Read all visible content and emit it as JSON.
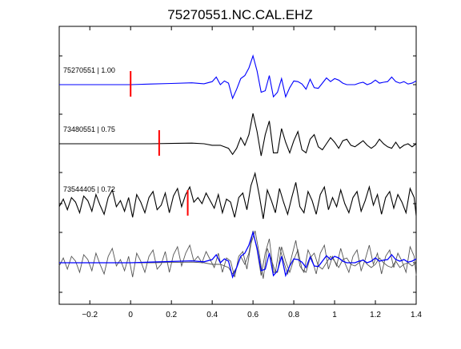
{
  "chart_data": {
    "type": "line",
    "title": "75270551.NC.CAL.EHZ",
    "xlabel": "",
    "ylabel": "",
    "xlim": [
      -0.35,
      1.4
    ],
    "xticks": [
      -0.2,
      0,
      0.2,
      0.4,
      0.6,
      0.8,
      1,
      1.2,
      1.4
    ],
    "xtick_labels": [
      "−0.2",
      "0",
      "0.2",
      "0.4",
      "0.6",
      "0.8",
      "1",
      "1.2",
      "1.4"
    ],
    "grid": false,
    "colors": {
      "reference": "#0000ff",
      "trace": "#000000",
      "overlay": "#555555",
      "pick": "#ff0000"
    },
    "series": [
      {
        "name": "75270551 | 1.00",
        "color": "#0000ff",
        "pick_x": 0.0,
        "x": [
          -0.35,
          -0.3,
          -0.2,
          -0.1,
          0,
          0.1,
          0.2,
          0.3,
          0.36,
          0.4,
          0.42,
          0.44,
          0.46,
          0.48,
          0.5,
          0.52,
          0.54,
          0.56,
          0.58,
          0.6,
          0.62,
          0.64,
          0.66,
          0.68,
          0.7,
          0.72,
          0.74,
          0.76,
          0.78,
          0.8,
          0.82,
          0.84,
          0.86,
          0.88,
          0.9,
          0.92,
          0.94,
          0.96,
          0.98,
          1.0,
          1.02,
          1.04,
          1.06,
          1.08,
          1.1,
          1.12,
          1.14,
          1.16,
          1.18,
          1.2,
          1.22,
          1.24,
          1.26,
          1.28,
          1.3,
          1.32,
          1.34,
          1.36,
          1.38,
          1.4
        ],
        "y": [
          0,
          0,
          0,
          0,
          0,
          0.02,
          0.04,
          0.06,
          0.03,
          0.1,
          0.25,
          0.0,
          0.12,
          0.05,
          -0.45,
          -0.15,
          0.2,
          0.3,
          0.55,
          0.95,
          0.45,
          -0.25,
          -0.2,
          0.3,
          -0.4,
          -0.25,
          0.2,
          -0.4,
          -0.1,
          0.12,
          0.1,
          0.02,
          -0.15,
          0.18,
          -0.1,
          -0.12,
          0.05,
          0.22,
          0.1,
          0.2,
          0.15,
          0.05,
          0.0,
          0.0,
          0.0,
          0.05,
          0.08,
          0.0,
          0.05,
          0.15,
          0.05,
          0.08,
          0.1,
          0.25,
          0.1,
          0.05,
          0.1,
          0.02,
          0.05,
          0.12
        ]
      },
      {
        "name": "73480551 | 0.75",
        "color": "#000000",
        "pick_x": 0.14,
        "x": [
          -0.35,
          -0.2,
          -0.1,
          0,
          0.1,
          0.2,
          0.3,
          0.36,
          0.4,
          0.44,
          0.48,
          0.5,
          0.52,
          0.54,
          0.56,
          0.58,
          0.6,
          0.62,
          0.64,
          0.66,
          0.68,
          0.7,
          0.72,
          0.74,
          0.76,
          0.78,
          0.8,
          0.82,
          0.84,
          0.86,
          0.88,
          0.9,
          0.92,
          0.94,
          0.96,
          0.98,
          1.0,
          1.02,
          1.04,
          1.06,
          1.08,
          1.1,
          1.12,
          1.14,
          1.16,
          1.18,
          1.2,
          1.22,
          1.24,
          1.26,
          1.28,
          1.3,
          1.32,
          1.34,
          1.36,
          1.38,
          1.4
        ],
        "y": [
          0,
          0,
          0,
          0,
          0,
          0.01,
          0.02,
          0.0,
          -0.05,
          -0.05,
          -0.15,
          -0.35,
          -0.15,
          0.2,
          -0.05,
          0.3,
          1.0,
          0.4,
          -0.4,
          0.3,
          0.75,
          -0.3,
          -0.3,
          0.5,
          0.05,
          -0.3,
          0.1,
          0.4,
          -0.2,
          -0.3,
          0.15,
          0.3,
          -0.1,
          -0.2,
          0.0,
          0.2,
          0.05,
          -0.15,
          0.1,
          0.15,
          -0.05,
          -0.1,
          0.0,
          0.1,
          -0.05,
          -0.15,
          -0.05,
          0.15,
          0.0,
          -0.1,
          -0.15,
          0.05,
          -0.15,
          -0.05,
          0.0,
          -0.1,
          0.0
        ]
      },
      {
        "name": "73544405 | 0.72",
        "color": "#000000",
        "pick_x": 0.28,
        "x": [
          -0.35,
          -0.33,
          -0.31,
          -0.29,
          -0.27,
          -0.25,
          -0.23,
          -0.21,
          -0.19,
          -0.17,
          -0.15,
          -0.13,
          -0.11,
          -0.09,
          -0.07,
          -0.05,
          -0.03,
          -0.01,
          0.01,
          0.03,
          0.05,
          0.07,
          0.09,
          0.11,
          0.13,
          0.15,
          0.17,
          0.19,
          0.21,
          0.23,
          0.25,
          0.27,
          0.29,
          0.31,
          0.33,
          0.35,
          0.37,
          0.39,
          0.41,
          0.43,
          0.45,
          0.47,
          0.49,
          0.51,
          0.53,
          0.55,
          0.57,
          0.59,
          0.61,
          0.63,
          0.65,
          0.67,
          0.69,
          0.71,
          0.73,
          0.75,
          0.77,
          0.79,
          0.81,
          0.83,
          0.85,
          0.87,
          0.89,
          0.91,
          0.93,
          0.95,
          0.97,
          0.99,
          1.01,
          1.03,
          1.05,
          1.07,
          1.09,
          1.11,
          1.13,
          1.15,
          1.17,
          1.19,
          1.21,
          1.23,
          1.25,
          1.27,
          1.29,
          1.31,
          1.33,
          1.35,
          1.37,
          1.39,
          1.4
        ],
        "y": [
          -0.1,
          0.15,
          -0.2,
          0.2,
          0.05,
          -0.3,
          0.25,
          0.1,
          -0.25,
          0.3,
          -0.05,
          -0.35,
          0.2,
          0.45,
          -0.1,
          0.1,
          -0.25,
          0.2,
          -0.45,
          0.3,
          0.05,
          -0.3,
          0.2,
          0.4,
          -0.2,
          -0.05,
          0.35,
          -0.3,
          0.25,
          0.5,
          -0.1,
          0.3,
          0.55,
          0.05,
          0.2,
          0.0,
          0.35,
          0.1,
          -0.15,
          0.3,
          -0.3,
          0.15,
          0.05,
          -0.45,
          0.2,
          0.35,
          -0.2,
          0.6,
          1.0,
          0.3,
          -0.5,
          0.45,
          0.1,
          -0.3,
          0.5,
          0.05,
          -0.35,
          0.2,
          0.7,
          -0.1,
          -0.3,
          0.4,
          0.1,
          -0.35,
          0.3,
          0.55,
          -0.2,
          0.2,
          -0.1,
          0.45,
          0.0,
          -0.3,
          0.2,
          0.4,
          -0.25,
          0.1,
          0.55,
          -0.05,
          0.3,
          -0.35,
          0.2,
          0.4,
          -0.15,
          0.3,
          0.05,
          -0.3,
          0.5,
          0.2,
          -0.4
        ]
      }
    ]
  }
}
